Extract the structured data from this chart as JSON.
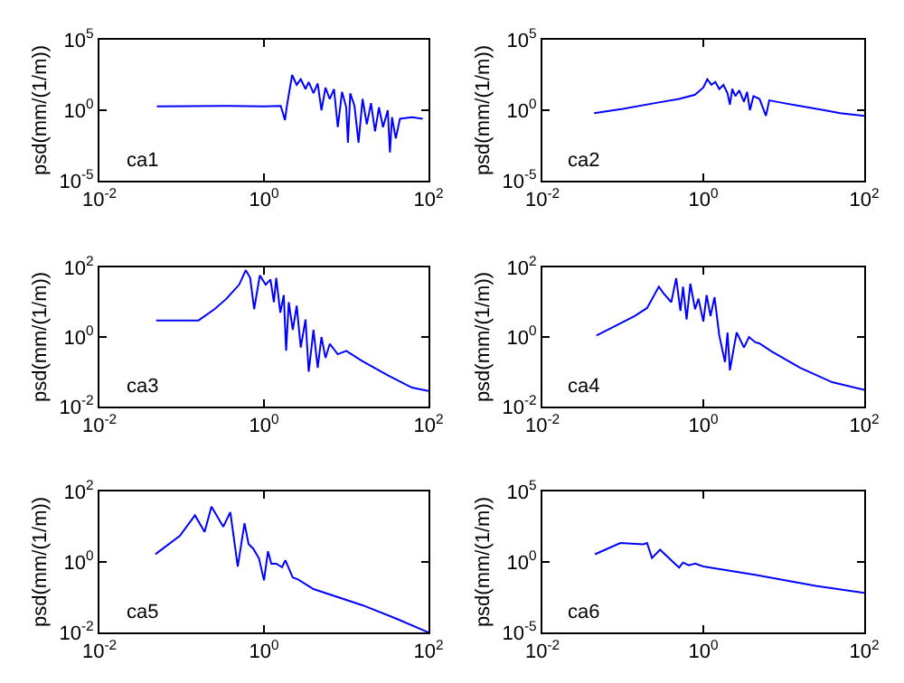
{
  "chart_data": [
    {
      "type": "line",
      "ylabel": "psd(mm/(1/m))",
      "annotations": [
        "ca1"
      ],
      "log": "xy",
      "xlim": [
        0.01,
        100
      ],
      "ylim": [
        1e-05,
        100000
      ],
      "xticks": [
        {
          "value": 0.01,
          "label": "10$^{-2}$"
        },
        {
          "value": 1,
          "label": "10$^{0}$"
        },
        {
          "value": 100,
          "label": "10$^{2}$"
        }
      ],
      "yticks": [
        {
          "value": 1e-05,
          "label": "10$^{-5}$"
        },
        {
          "value": 1,
          "label": "10$^{0}$"
        },
        {
          "value": 100000,
          "label": "10$^{5}$"
        }
      ],
      "x": [
        0.05,
        0.32,
        1,
        1.6,
        1.8,
        1.9,
        2.2,
        2.5,
        2.8,
        3.2,
        3.5,
        4,
        4.5,
        5,
        5.6,
        6.3,
        7.1,
        7.9,
        8.9,
        10,
        10.5,
        11.2,
        12.6,
        14.1,
        15.8,
        17.8,
        20,
        22.4,
        25,
        28,
        32,
        34,
        36,
        40,
        45,
        63,
        85
      ],
      "series": [
        {
          "color": "#0000ff",
          "values": [
            1.9,
            2,
            1.9,
            2,
            0.2,
            2,
            316,
            63,
            158,
            32,
            100,
            16,
            79,
            1,
            40,
            6.3,
            32,
            0.063,
            20,
            1.6,
            0.005,
            16,
            2,
            0.005,
            6.3,
            0.1,
            3.2,
            0.032,
            1.6,
            0.063,
            1,
            0.001,
            0.32,
            0.01,
            0.25,
            0.32,
            0.25
          ]
        }
      ]
    },
    {
      "type": "line",
      "ylabel": "psd(mm/(1/m))",
      "annotations": [
        "ca2"
      ],
      "log": "xy",
      "xlim": [
        0.01,
        100
      ],
      "ylim": [
        1e-05,
        100000
      ],
      "xticks": [
        {
          "value": 0.01,
          "label": "10$^{-2}$"
        },
        {
          "value": 1,
          "label": "10$^{0}$"
        },
        {
          "value": 100,
          "label": "10$^{2}$"
        }
      ],
      "yticks": [
        {
          "value": 1e-05,
          "label": "10$^{-5}$"
        },
        {
          "value": 1,
          "label": "10$^{0}$"
        },
        {
          "value": 100000,
          "label": "10$^{5}$"
        }
      ],
      "x": [
        0.044,
        0.1,
        0.25,
        0.5,
        0.79,
        1,
        1.12,
        1.26,
        1.41,
        1.58,
        1.78,
        2,
        2.14,
        2.29,
        2.5,
        2.8,
        3.2,
        3.5,
        3.8,
        4.2,
        5,
        6,
        6.6,
        10,
        15.8,
        32,
        50,
        100
      ],
      "series": [
        {
          "color": "#0000ff",
          "values": [
            0.63,
            1.26,
            3.2,
            6.3,
            12.6,
            40,
            158,
            63,
            100,
            32,
            63,
            16,
            2.5,
            32,
            10,
            25,
            4,
            20,
            1,
            10,
            6.3,
            0.4,
            5,
            3.2,
            2,
            1,
            0.63,
            0.4
          ]
        }
      ]
    },
    {
      "type": "line",
      "ylabel": "psd(mm/(1/m))",
      "annotations": [
        "ca3"
      ],
      "log": "xy",
      "xlim": [
        0.01,
        100
      ],
      "ylim": [
        0.01,
        100
      ],
      "xticks": [
        {
          "value": 0.01,
          "label": "10$^{-2}$"
        },
        {
          "value": 1,
          "label": "10$^{0}$"
        },
        {
          "value": 100,
          "label": "10$^{2}$"
        }
      ],
      "yticks": [
        {
          "value": 0.01,
          "label": "10$^{-2}$"
        },
        {
          "value": 1,
          "label": "10$^{0}$"
        },
        {
          "value": 100,
          "label": "10$^{2}$"
        }
      ],
      "x": [
        0.049,
        0.16,
        0.25,
        0.35,
        0.5,
        0.6,
        0.68,
        0.76,
        0.89,
        1.05,
        1.2,
        1.32,
        1.41,
        1.58,
        1.74,
        1.86,
        2,
        2.24,
        2.5,
        2.8,
        3.2,
        3.5,
        4,
        4.5,
        5,
        5.6,
        6.3,
        7.9,
        10,
        15.8,
        32,
        63,
        100
      ],
      "series": [
        {
          "color": "#0000ff",
          "values": [
            3,
            3,
            6.3,
            12.6,
            32,
            83,
            50,
            6.3,
            59,
            32,
            45,
            10,
            50,
            5,
            16,
            0.4,
            10,
            1.6,
            7.9,
            0.5,
            3.2,
            0.1,
            1.6,
            0.13,
            1,
            0.25,
            0.63,
            0.32,
            0.4,
            0.2,
            0.079,
            0.035,
            0.028
          ]
        }
      ]
    },
    {
      "type": "line",
      "ylabel": "psd(mm/(1/m))",
      "annotations": [
        "ca4"
      ],
      "log": "xy",
      "xlim": [
        0.01,
        100
      ],
      "ylim": [
        0.01,
        100
      ],
      "xticks": [
        {
          "value": 0.01,
          "label": "10$^{-2}$"
        },
        {
          "value": 1,
          "label": "10$^{0}$"
        },
        {
          "value": 100,
          "label": "10$^{2}$"
        }
      ],
      "yticks": [
        {
          "value": 0.01,
          "label": "10$^{-2}$"
        },
        {
          "value": 1,
          "label": "10$^{0}$"
        },
        {
          "value": 100,
          "label": "10$^{2}$"
        }
      ],
      "x": [
        0.047,
        0.14,
        0.2,
        0.28,
        0.32,
        0.4,
        0.46,
        0.52,
        0.56,
        0.62,
        0.69,
        0.79,
        0.87,
        1,
        1.1,
        1.23,
        1.38,
        1.58,
        1.86,
        2,
        2.14,
        2.4,
        2.6,
        3.2,
        3.7,
        4.4,
        5,
        7.1,
        16,
        40,
        100
      ],
      "series": [
        {
          "color": "#0000ff",
          "values": [
            1.1,
            4,
            6.8,
            28,
            18,
            10,
            49,
            5.6,
            28,
            3.2,
            34,
            6.3,
            12.6,
            2.8,
            16,
            4,
            14,
            1.1,
            0.19,
            1.35,
            0.11,
            0.5,
            1.35,
            0.5,
            1,
            0.71,
            0.65,
            0.38,
            0.13,
            0.05,
            0.03
          ]
        }
      ]
    },
    {
      "type": "line",
      "ylabel": "psd(mm/(1/m))",
      "annotations": [
        "ca5"
      ],
      "log": "xy",
      "xlim": [
        0.01,
        100
      ],
      "ylim": [
        0.01,
        100
      ],
      "xticks": [
        {
          "value": 0.01,
          "label": "10$^{-2}$"
        },
        {
          "value": 1,
          "label": "10$^{0}$"
        },
        {
          "value": 100,
          "label": "10$^{2}$"
        }
      ],
      "yticks": [
        {
          "value": 0.01,
          "label": "10$^{-2}$"
        },
        {
          "value": 1,
          "label": "10$^{0}$"
        },
        {
          "value": 100,
          "label": "10$^{2}$"
        }
      ],
      "x": [
        0.048,
        0.095,
        0.145,
        0.19,
        0.23,
        0.32,
        0.39,
        0.48,
        0.58,
        0.65,
        0.74,
        0.87,
        1,
        1.12,
        1.23,
        1.41,
        1.66,
        1.82,
        2.24,
        2.6,
        4,
        15.8,
        40,
        100
      ],
      "series": [
        {
          "color": "#0000ff",
          "values": [
            1.66,
            5.5,
            21,
            7.1,
            37,
            10,
            26,
            0.74,
            12.6,
            3.2,
            2.4,
            1.26,
            0.3,
            2,
            0.89,
            0.89,
            0.71,
            1.12,
            0.36,
            0.32,
            0.17,
            0.059,
            0.025,
            0.01
          ]
        }
      ]
    },
    {
      "type": "line",
      "ylabel": "psd(mm/(1/m))",
      "annotations": [
        "ca6"
      ],
      "log": "xy",
      "xlim": [
        0.01,
        100
      ],
      "ylim": [
        1e-05,
        100000
      ],
      "xticks": [
        {
          "value": 0.01,
          "label": "10$^{-2}$"
        },
        {
          "value": 1,
          "label": "10$^{0}$"
        },
        {
          "value": 100,
          "label": "10$^{2}$"
        }
      ],
      "yticks": [
        {
          "value": 1e-05,
          "label": "10$^{-5}$"
        },
        {
          "value": 1,
          "label": "10$^{0}$"
        },
        {
          "value": 100000,
          "label": "10$^{5}$"
        }
      ],
      "x": [
        0.045,
        0.093,
        0.18,
        0.2,
        0.23,
        0.29,
        0.5,
        0.56,
        0.66,
        0.79,
        1,
        4.4,
        25,
        100
      ],
      "series": [
        {
          "color": "#0000ff",
          "values": [
            3.5,
            22,
            18,
            22,
            1.9,
            7.4,
            0.4,
            0.91,
            0.58,
            0.76,
            0.48,
            0.12,
            0.02,
            0.0063
          ]
        }
      ]
    }
  ]
}
